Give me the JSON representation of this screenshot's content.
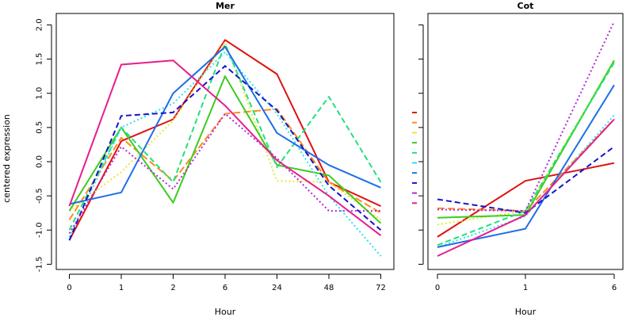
{
  "chart_data": [
    {
      "type": "line",
      "title": "Mer",
      "xlabel": "Hour",
      "ylabel": "centered expression",
      "categories": [
        "0",
        "1",
        "2",
        "6",
        "24",
        "48",
        "72"
      ],
      "ylim": [
        -1.5,
        2.0
      ],
      "yticks": [
        "-1.5",
        "-1.0",
        "-0.5",
        "0.0",
        "0.5",
        "1.0",
        "1.5",
        "2.0"
      ],
      "ytick_values": [
        -1.5,
        -1.0,
        -0.5,
        0.0,
        0.5,
        1.0,
        1.5,
        2.0
      ],
      "grid": false,
      "series": [
        {
          "color": "#e01010",
          "dash": "solid",
          "values": [
            -1.15,
            0.3,
            0.62,
            1.78,
            1.28,
            -0.3,
            -0.65
          ]
        },
        {
          "color": "#ff8c1a",
          "dash": "longdash",
          "values": [
            -0.85,
            0.35,
            -0.28,
            0.7,
            0.77,
            -0.3,
            -0.75
          ]
        },
        {
          "color": "#e8e832",
          "dash": "dotted",
          "values": [
            -0.72,
            -0.15,
            0.6,
            1.75,
            -0.28,
            -0.3,
            -0.85
          ]
        },
        {
          "color": "#3ccc1e",
          "dash": "solid",
          "values": [
            -0.72,
            0.5,
            -0.6,
            1.25,
            -0.05,
            -0.2,
            -0.9
          ]
        },
        {
          "color": "#22e07c",
          "dash": "dashed",
          "values": [
            -1.0,
            0.5,
            -0.3,
            1.72,
            -0.08,
            0.95,
            -0.3
          ]
        },
        {
          "color": "#30e0f0",
          "dash": "dotted",
          "values": [
            -1.1,
            0.5,
            0.85,
            1.6,
            0.7,
            -0.5,
            -1.38
          ]
        },
        {
          "color": "#1e6ee8",
          "dash": "solid",
          "values": [
            -0.62,
            -0.45,
            1.0,
            1.68,
            0.42,
            -0.05,
            -0.38
          ]
        },
        {
          "color": "#1414c8",
          "dash": "dashed",
          "values": [
            -1.15,
            0.67,
            0.72,
            1.4,
            0.75,
            -0.35,
            -1.0
          ]
        },
        {
          "color": "#b428d8",
          "dash": "dotted",
          "values": [
            -1.05,
            0.22,
            -0.4,
            0.7,
            0.05,
            -0.72,
            -0.72
          ]
        },
        {
          "color": "#e61e8c",
          "dash": "solid",
          "values": [
            -0.65,
            1.42,
            1.48,
            0.82,
            0.02,
            -0.5,
            -1.08
          ]
        }
      ]
    },
    {
      "type": "line",
      "title": "Cot",
      "xlabel": "Hour",
      "ylabel": "",
      "categories": [
        "0",
        "1",
        "6"
      ],
      "ylim": [
        -1.5,
        2.0
      ],
      "grid": false,
      "legend_position": "left",
      "series": [
        {
          "color": "#e01010",
          "dash": "solid",
          "values": [
            -1.1,
            -0.28,
            -0.02
          ]
        },
        {
          "color": "#ff8c1a",
          "dash": "longdash",
          "values": [
            -0.68,
            -0.72,
            0.62
          ]
        },
        {
          "color": "#e8e832",
          "dash": "dotted",
          "values": [
            -0.92,
            -0.72,
            1.48
          ]
        },
        {
          "color": "#3ccc1e",
          "dash": "solid",
          "values": [
            -0.82,
            -0.78,
            1.48
          ]
        },
        {
          "color": "#22e07c",
          "dash": "dashed",
          "values": [
            -1.22,
            -0.72,
            1.45
          ]
        },
        {
          "color": "#30e0f0",
          "dash": "dotted",
          "values": [
            -1.25,
            -0.8,
            0.68
          ]
        },
        {
          "color": "#1e6ee8",
          "dash": "solid",
          "values": [
            -1.25,
            -0.98,
            1.12
          ]
        },
        {
          "color": "#1414c8",
          "dash": "dashed",
          "values": [
            -0.55,
            -0.75,
            0.22
          ]
        },
        {
          "color": "#b428d8",
          "dash": "dotted",
          "values": [
            -0.7,
            -0.72,
            2.05
          ]
        },
        {
          "color": "#e61e8c",
          "dash": "solid",
          "values": [
            -1.38,
            -0.78,
            0.62
          ]
        }
      ]
    }
  ]
}
